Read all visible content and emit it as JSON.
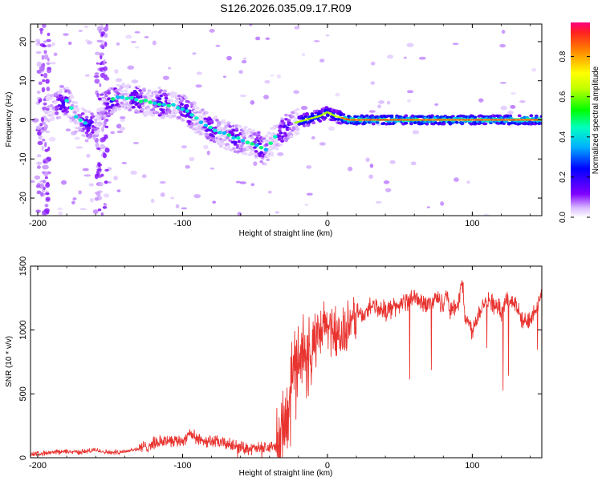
{
  "title": "S126.2026.035.09.17.R09",
  "colors": {
    "snr_line": "#e8332f",
    "frame": "#000000"
  },
  "chart_data": [
    {
      "type": "heatmap",
      "xlabel": "Height of straight line (km)",
      "ylabel": "Frequency (Hz)",
      "xlim": [
        -205,
        148
      ],
      "ylim": [
        -24.5,
        24.5
      ],
      "xticks": [
        -200,
        -100,
        0,
        100
      ],
      "yticks": [
        -20,
        -10,
        0,
        10,
        20
      ],
      "colorbar": {
        "label": "Normalized spectral amplitude",
        "range": [
          0,
          0.97
        ],
        "ticks": [
          0,
          0.2,
          0.4,
          0.6,
          0.8
        ],
        "colormap": "rainbow"
      },
      "ridge": {
        "description_points_x": [
          -190,
          -180,
          -172,
          -160,
          -150,
          -140,
          -130,
          -120,
          -110,
          -100,
          -90,
          -80,
          -70,
          -60,
          -50,
          -43,
          -35,
          -25,
          -15,
          -5,
          0,
          5,
          15,
          40,
          80,
          120,
          148
        ],
        "description_points_y": [
          3,
          5,
          0,
          -2,
          5,
          6,
          5,
          4,
          4,
          3,
          0,
          -2,
          -4,
          -5,
          -6,
          -8,
          -4,
          -1,
          0,
          1,
          2,
          1,
          0,
          0,
          0,
          0,
          0
        ]
      }
    },
    {
      "type": "line",
      "xlabel": "Height of straight line (km)",
      "ylabel": "SNR (10 * v/v)",
      "xlim": [
        -205,
        148
      ],
      "ylim": [
        0,
        1500
      ],
      "xticks": [
        -200,
        -100,
        0,
        100
      ],
      "yticks": [
        0,
        500,
        1000,
        1500
      ],
      "series": [
        {
          "x": [
            -205,
            -190,
            -180,
            -170,
            -160,
            -150,
            -140,
            -130,
            -120,
            -110,
            -100,
            -95,
            -90,
            -80,
            -70,
            -60,
            -50,
            -40,
            -35,
            -30,
            -27,
            -25,
            -22,
            -20,
            -18,
            -15,
            -12,
            -10,
            -5,
            0,
            5,
            10,
            15,
            20,
            25,
            30,
            40,
            50,
            60,
            70,
            75,
            80,
            82,
            85,
            90,
            93,
            95,
            100,
            105,
            110,
            115,
            120,
            125,
            130,
            135,
            140,
            145,
            148
          ],
          "y": [
            30,
            40,
            50,
            45,
            60,
            40,
            50,
            70,
            110,
            140,
            130,
            200,
            140,
            130,
            110,
            80,
            70,
            80,
            90,
            200,
            450,
            650,
            700,
            800,
            850,
            800,
            750,
            900,
            950,
            1050,
            1000,
            950,
            1000,
            1150,
            1100,
            1200,
            1150,
            1200,
            1250,
            1200,
            1250,
            1200,
            1300,
            1150,
            1200,
            1400,
            1100,
            1000,
            1150,
            1250,
            1200,
            1150,
            1250,
            1200,
            1050,
            1100,
            1200,
            1250
          ]
        }
      ]
    }
  ]
}
